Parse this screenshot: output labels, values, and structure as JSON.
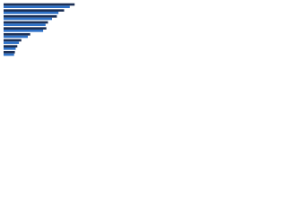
{
  "chart_data": {
    "type": "bar",
    "orientation": "horizontal",
    "categories": [
      null,
      null,
      null,
      null,
      null,
      null,
      null,
      null,
      null
    ],
    "series": [
      {
        "color": "#1b2f55",
        "values": [
          88,
          75,
          66,
          55,
          53,
          33,
          22,
          17,
          14
        ]
      },
      {
        "color": "#2f72c8",
        "values": [
          82,
          68,
          60,
          52,
          49,
          30,
          19,
          15,
          13
        ]
      }
    ],
    "xlim": [
      0,
      100
    ]
  }
}
